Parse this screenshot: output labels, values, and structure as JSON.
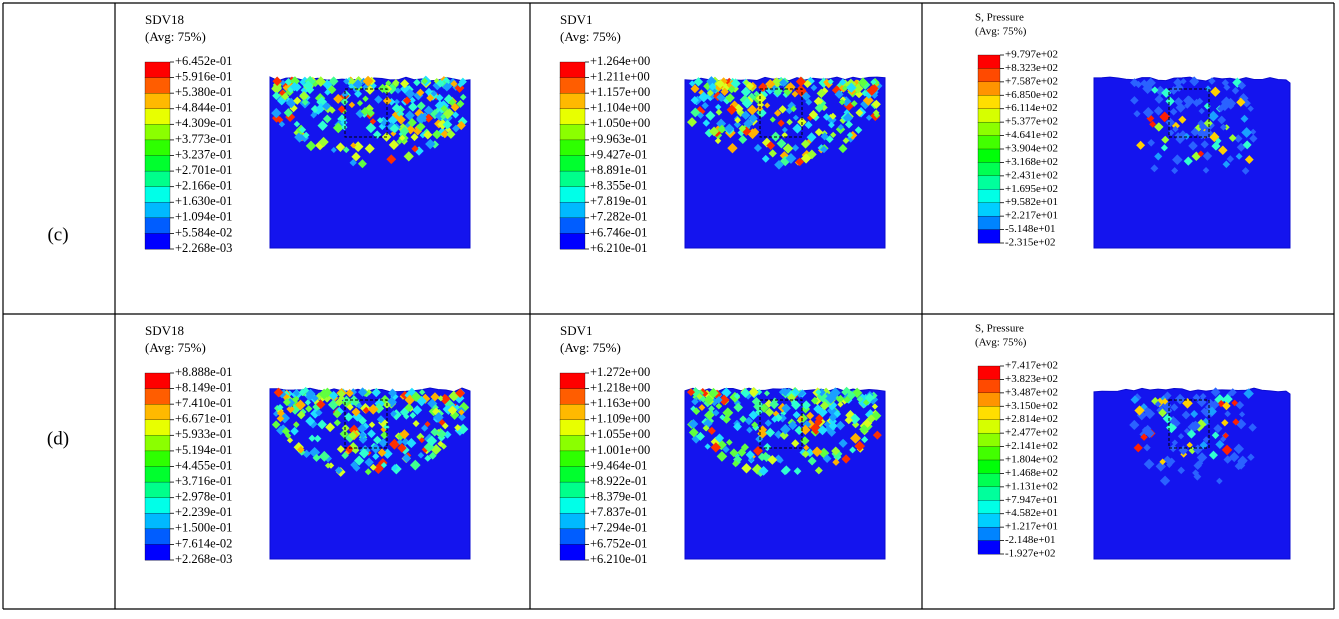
{
  "rows": [
    {
      "label": "(c)",
      "panels": [
        {
          "title": "SDV18",
          "avg": "(Avg: 75%)",
          "legend": [
            "+6.452e-01",
            "+5.916e-01",
            "+5.380e-01",
            "+4.844e-01",
            "+4.309e-01",
            "+3.773e-01",
            "+3.237e-01",
            "+2.701e-01",
            "+2.166e-01",
            "+1.630e-01",
            "+1.094e-01",
            "+5.584e-02",
            "+2.268e-03"
          ]
        },
        {
          "title": "SDV1",
          "avg": "(Avg: 75%)",
          "legend": [
            "+1.264e+00",
            "+1.211e+00",
            "+1.157e+00",
            "+1.104e+00",
            "+1.050e+00",
            "+9.963e-01",
            "+9.427e-01",
            "+8.891e-01",
            "+8.355e-01",
            "+7.819e-01",
            "+7.282e-01",
            "+6.746e-01",
            "+6.210e-01"
          ]
        },
        {
          "title": "S, Pressure",
          "avg": "(Avg: 75%)",
          "legend": [
            "+9.797e+02",
            "+8.323e+02",
            "+7.587e+02",
            "+6.850e+02",
            "+6.114e+02",
            "+5.377e+02",
            "+4.641e+02",
            "+3.904e+02",
            "+3.168e+02",
            "+2.431e+02",
            "+1.695e+02",
            "+9.582e+01",
            "+2.217e+01",
            "-5.148e+01",
            "-2.315e+02"
          ]
        }
      ]
    },
    {
      "label": "(d)",
      "panels": [
        {
          "title": "SDV18",
          "avg": "(Avg: 75%)",
          "legend": [
            "+8.888e-01",
            "+8.149e-01",
            "+7.410e-01",
            "+6.671e-01",
            "+5.933e-01",
            "+5.194e-01",
            "+4.455e-01",
            "+3.716e-01",
            "+2.978e-01",
            "+2.239e-01",
            "+1.500e-01",
            "+7.614e-02",
            "+2.268e-03"
          ]
        },
        {
          "title": "SDV1",
          "avg": "(Avg: 75%)",
          "legend": [
            "+1.272e+00",
            "+1.218e+00",
            "+1.163e+00",
            "+1.109e+00",
            "+1.055e+00",
            "+1.001e+00",
            "+9.464e-01",
            "+8.922e-01",
            "+8.379e-01",
            "+7.837e-01",
            "+7.294e-01",
            "+6.752e-01",
            "+6.210e-01"
          ]
        },
        {
          "title": "S, Pressure",
          "avg": "(Avg: 75%)",
          "legend": [
            "+7.417e+02",
            "+3.823e+02",
            "+3.487e+02",
            "+3.150e+02",
            "+2.814e+02",
            "+2.477e+02",
            "+2.141e+02",
            "+1.804e+02",
            "+1.468e+02",
            "+1.131e+02",
            "+7.947e+01",
            "+4.582e+01",
            "+1.217e+01",
            "-2.148e+01",
            "-1.927e+02"
          ]
        }
      ]
    }
  ]
}
